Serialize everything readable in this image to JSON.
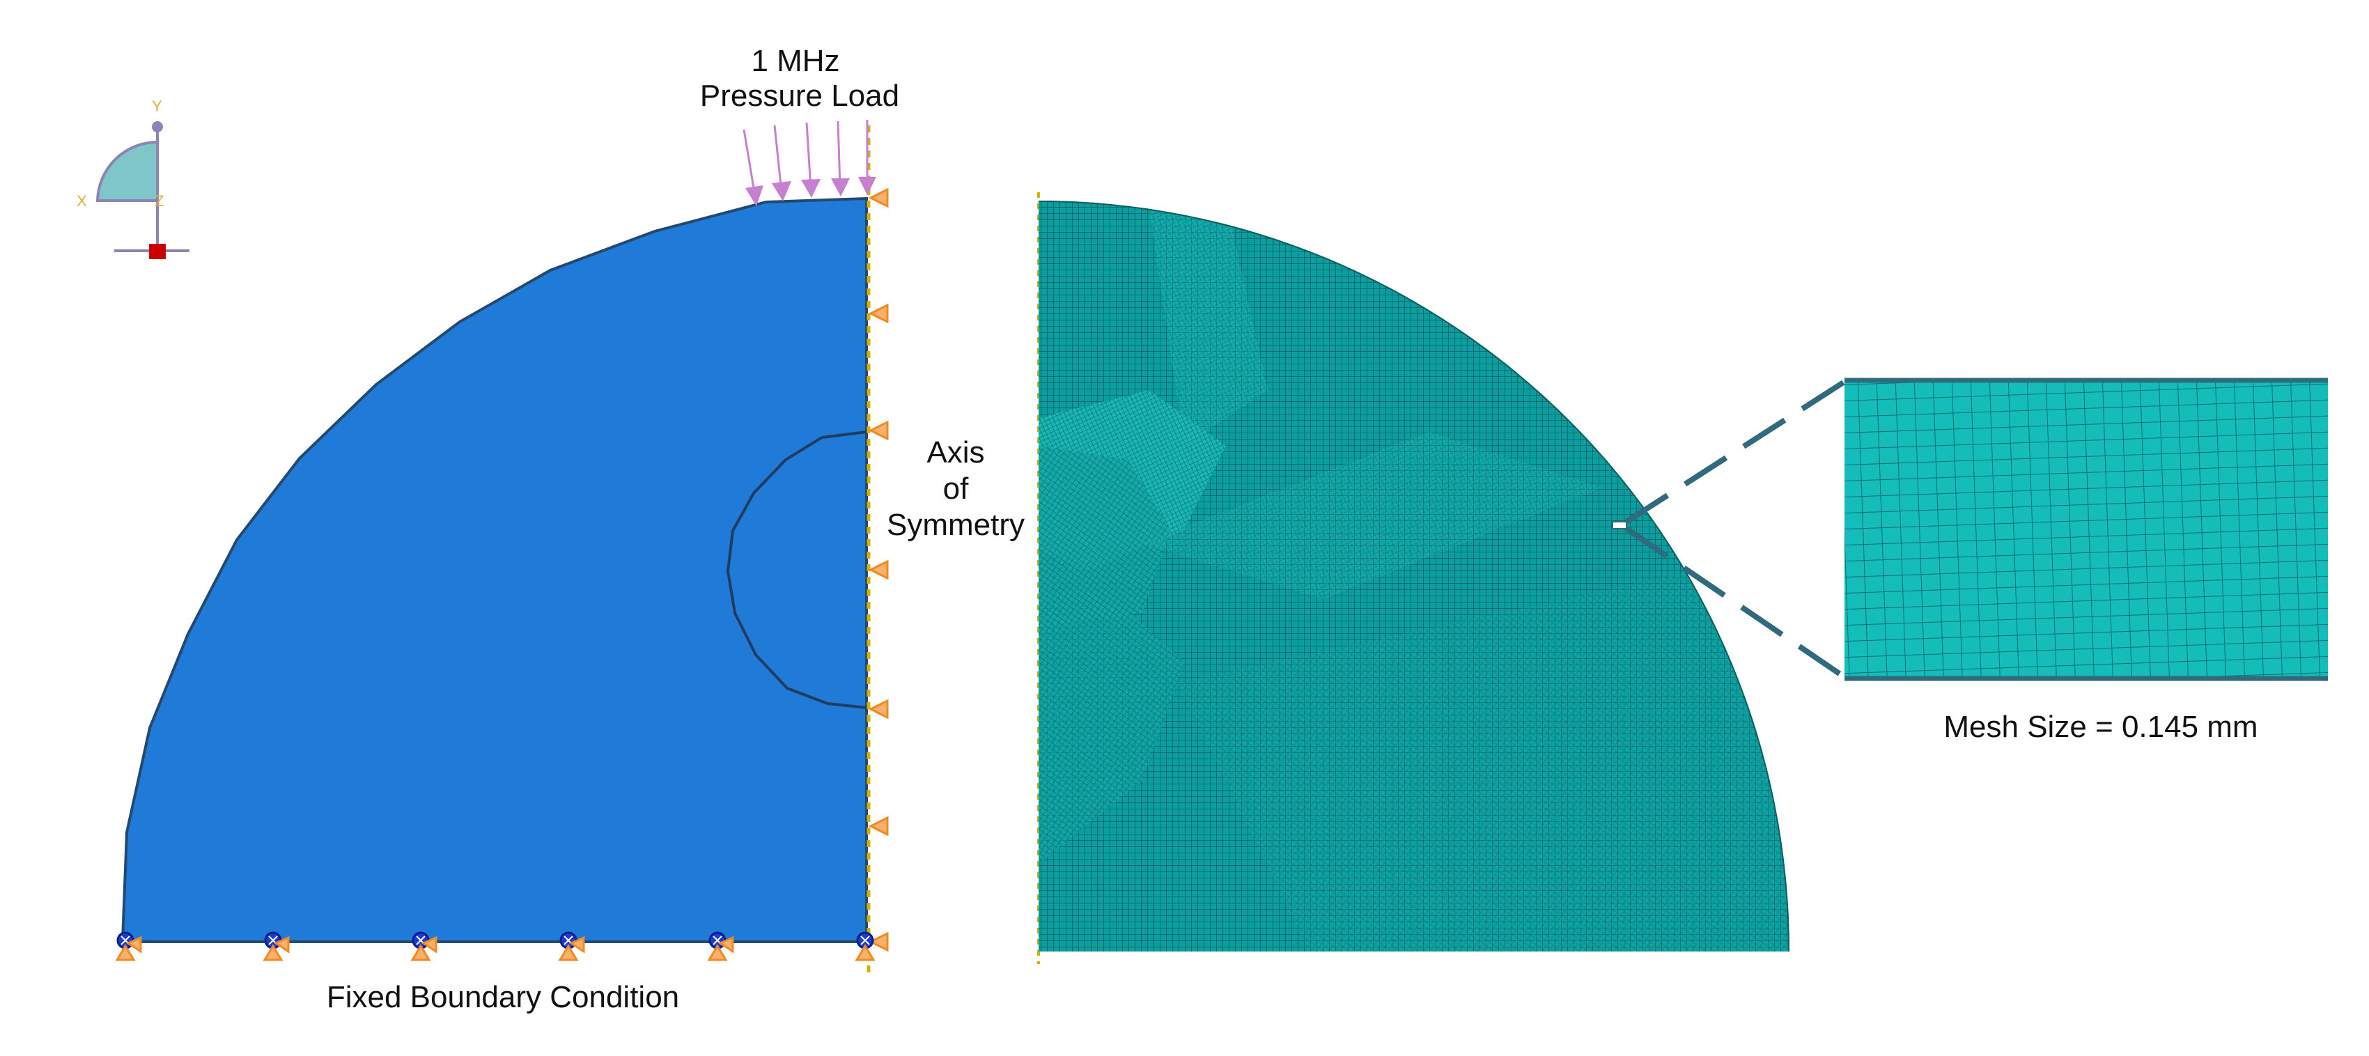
{
  "labels": {
    "load_line1": "1 MHz",
    "load_line2": "Pressure Load",
    "axis_line1": "Axis",
    "axis_line2": "of",
    "axis_line3": "Symmetry",
    "fixed_bc": "Fixed Boundary Condition",
    "mesh_size": "Mesh Size = 0.145 mm"
  },
  "triad": {
    "y_label": "Y",
    "x_label": "X",
    "z_label": "Z"
  },
  "colors": {
    "domain_fill": "#1f7ad8",
    "domain_edge": "#234a6e",
    "mesh_fill": "#0c9e9e",
    "mesh_line": "#0a5f63",
    "load_arrow": "#c77fd1",
    "bc_orange": "#f08a24",
    "bc_blue": "#1b3bd6",
    "axis_dash": "#d4b000",
    "callout": "#2f6a7e",
    "triad_fill": "#7fc6c8",
    "triad_line": "#8c84b8",
    "triad_origin": "#cc0000"
  },
  "icons": {
    "symmetry_bc": "orange-cone-icon",
    "encastre_bc": "blue-encastre-icon",
    "pressure": "pressure-arrow-icon"
  }
}
